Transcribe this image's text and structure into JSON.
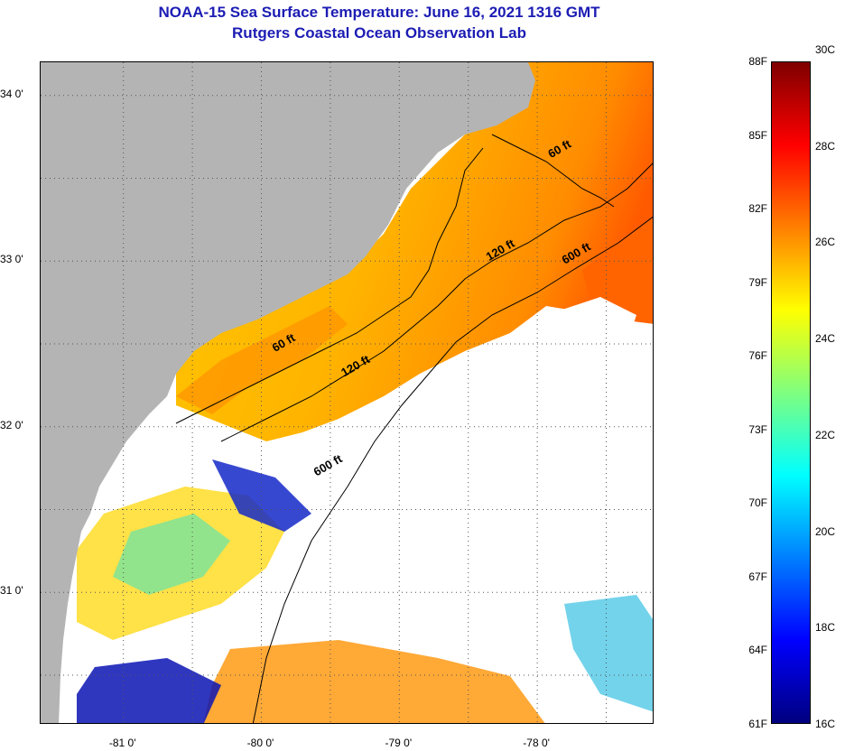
{
  "title": {
    "line1": "NOAA-15 Sea Surface Temperature:  June 16, 2021 1316 GMT",
    "line2": "Rutgers Coastal Ocean Observation Lab"
  },
  "map": {
    "lon_range": [
      -81.6,
      -77.15
    ],
    "lat_range": [
      30.2,
      34.2
    ],
    "land_color": "#b4b4b4",
    "cloud_color": "#ffffff",
    "lat_ticks": [
      {
        "value": 34,
        "label": "34 0'"
      },
      {
        "value": 33.5,
        "label": ""
      },
      {
        "value": 33,
        "label": "33 0'"
      },
      {
        "value": 32.5,
        "label": ""
      },
      {
        "value": 32,
        "label": "32 0'"
      },
      {
        "value": 31.5,
        "label": ""
      },
      {
        "value": 31,
        "label": "31 0'"
      },
      {
        "value": 30.5,
        "label": ""
      }
    ],
    "lon_ticks": [
      {
        "value": -81,
        "label": "-81 0'"
      },
      {
        "value": -80.5,
        "label": ""
      },
      {
        "value": -80,
        "label": "-80 0'"
      },
      {
        "value": -79.5,
        "label": ""
      },
      {
        "value": -79,
        "label": "-79 0'"
      },
      {
        "value": -78.5,
        "label": ""
      },
      {
        "value": -78,
        "label": "-78 0'"
      },
      {
        "value": -77.5,
        "label": ""
      }
    ],
    "contours": [
      {
        "label": "60 ft",
        "label_lon": -77.9,
        "label_lat": 33.62
      },
      {
        "label": "60 ft",
        "label_lon": -79.9,
        "label_lat": 32.45
      },
      {
        "label": "120 ft",
        "label_lon": -78.35,
        "label_lat": 33.0
      },
      {
        "label": "120 ft",
        "label_lon": -79.4,
        "label_lat": 32.3
      },
      {
        "label": "600 ft",
        "label_lon": -77.8,
        "label_lat": 32.98
      },
      {
        "label": "600 ft",
        "label_lon": -79.6,
        "label_lat": 31.7
      }
    ]
  },
  "colorbar": {
    "fahrenheit": [
      "88F",
      "85F",
      "82F",
      "79F",
      "76F",
      "73F",
      "70F",
      "67F",
      "64F",
      "61F"
    ],
    "celsius": [
      "30C",
      "28C",
      "26C",
      "24C",
      "22C",
      "20C",
      "18C",
      "16C"
    ],
    "colors": [
      "#00007f",
      "#0000ff",
      "#007fff",
      "#00ffff",
      "#7fff7f",
      "#ffff00",
      "#ff7f00",
      "#ff0000",
      "#7f0000"
    ]
  }
}
